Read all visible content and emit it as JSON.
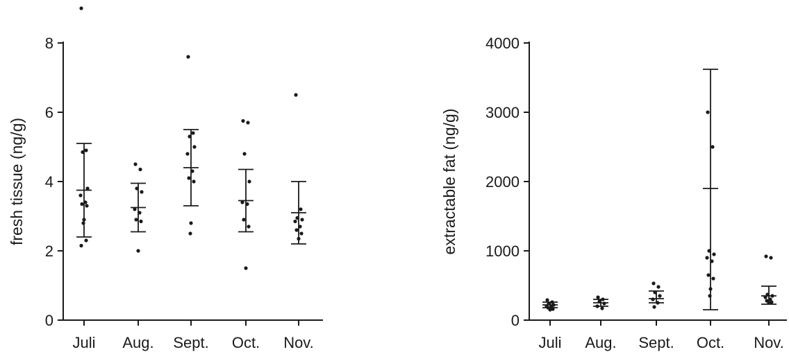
{
  "chart_data": [
    {
      "type": "scatter",
      "ylabel": "fresh tissue (ng/g)",
      "xlabel": "",
      "ylim": [
        0,
        8
      ],
      "yticks": [
        0,
        2,
        4,
        6,
        8
      ],
      "grid": false,
      "categories": [
        "Juli",
        "Aug.",
        "Sept.",
        "Oct.",
        "Nov."
      ],
      "points": [
        [
          9.0,
          4.9,
          4.85,
          3.8,
          3.6,
          3.4,
          3.35,
          3.3,
          2.9,
          2.8,
          2.3,
          2.15
        ],
        [
          4.5,
          4.35,
          3.8,
          3.7,
          3.2,
          3.1,
          2.9,
          2.85,
          2.0
        ],
        [
          7.6,
          5.4,
          5.3,
          5.0,
          4.8,
          4.3,
          4.1,
          4.0,
          2.8,
          2.5
        ],
        [
          5.75,
          5.7,
          4.8,
          4.0,
          3.4,
          3.35,
          2.9,
          2.7,
          1.5
        ],
        [
          6.5,
          3.2,
          2.95,
          2.9,
          2.85,
          2.7,
          2.6,
          2.5,
          2.35
        ]
      ],
      "summary": [
        {
          "mean": 3.75,
          "lower": 2.4,
          "upper": 5.1
        },
        {
          "mean": 3.25,
          "lower": 2.55,
          "upper": 3.95
        },
        {
          "mean": 4.4,
          "lower": 3.3,
          "upper": 5.5
        },
        {
          "mean": 3.45,
          "lower": 2.55,
          "upper": 4.35
        },
        {
          "mean": 3.1,
          "lower": 2.2,
          "upper": 4.0
        }
      ]
    },
    {
      "type": "scatter",
      "ylabel": "extractable fat (ng/g)",
      "xlabel": "",
      "ylim": [
        0,
        4000
      ],
      "yticks": [
        0,
        1000,
        2000,
        3000,
        4000
      ],
      "grid": false,
      "categories": [
        "Juli",
        "Aug.",
        "Sept.",
        "Oct.",
        "Nov."
      ],
      "points": [
        [
          290,
          260,
          240,
          220,
          200,
          190,
          180,
          160,
          150
        ],
        [
          330,
          300,
          270,
          240,
          200,
          170
        ],
        [
          530,
          480,
          400,
          350,
          300,
          250,
          190
        ],
        [
          3000,
          2500,
          1000,
          950,
          900,
          850,
          650,
          600,
          450,
          350
        ],
        [
          920,
          900,
          370,
          350,
          330,
          300,
          280,
          260,
          250
        ]
      ],
      "summary": [
        {
          "mean": 220,
          "lower": 180,
          "upper": 260
        },
        {
          "mean": 250,
          "lower": 200,
          "upper": 300
        },
        {
          "mean": 310,
          "lower": 250,
          "upper": 420
        },
        {
          "mean": 1900,
          "lower": 150,
          "upper": 3620
        },
        {
          "mean": 350,
          "lower": 230,
          "upper": 490
        }
      ]
    }
  ]
}
